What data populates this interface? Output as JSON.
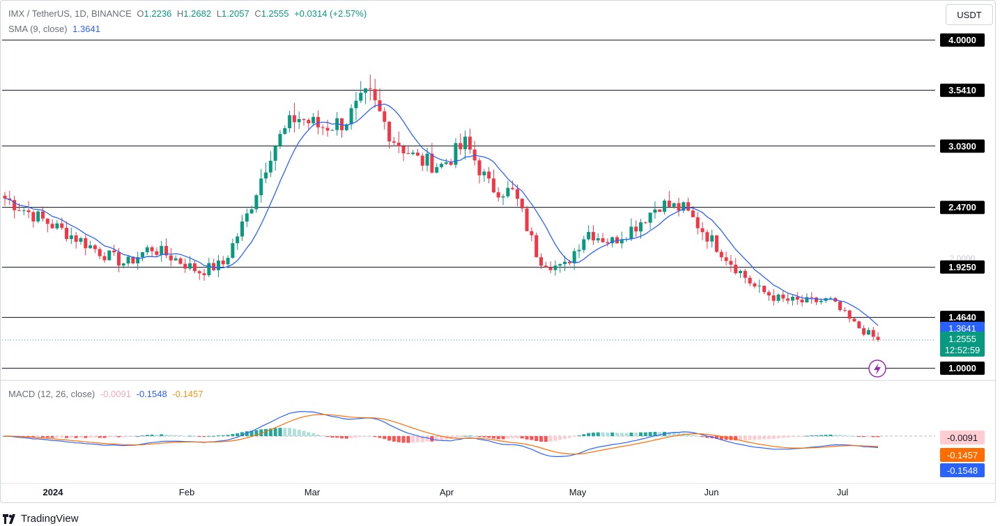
{
  "header": {
    "symbol": "IMX / TetherUS, 1D, BINANCE",
    "o_label": "O",
    "o_value": "1.2236",
    "h_label": "H",
    "h_value": "1.2682",
    "l_label": "L",
    "l_value": "1.2057",
    "c_label": "C",
    "c_value": "1.2555",
    "change": "+0.0314 (+2.57%)",
    "sma_label": "SMA (9, close)",
    "sma_value": "1.3641"
  },
  "currency_button": "USDT",
  "macd_legend": {
    "label": "MACD (12, 26, close)",
    "hist": "-0.0091",
    "macd": "-0.1548",
    "signal": "-0.1457"
  },
  "brand": "TradingView",
  "colors": {
    "up": "#089981",
    "down": "#f23645",
    "sma": "#2962ff",
    "macd": "#2962ff",
    "signal": "#ff6d00"
  },
  "chart_data": {
    "type": "candlestick",
    "title": "IMX / TetherUS, 1D, BINANCE",
    "x_labels": [
      "2024",
      "Feb",
      "Mar",
      "Apr",
      "May",
      "Jun",
      "Jul"
    ],
    "price_axis_labels": [
      "4.0000",
      "3.5410",
      "3.0300",
      "2.4700",
      "2.0000",
      "1.9250",
      "1.4640",
      "1.0000"
    ],
    "horizontal_levels": [
      4.0,
      3.541,
      3.03,
      2.47,
      1.925,
      1.464,
      1.0
    ],
    "level_labels": [
      "4.0000",
      "3.5410",
      "3.0300",
      "2.4700",
      "1.9250",
      "1.4640",
      "1.0000"
    ],
    "faint_tick": "2.0000",
    "last_price": {
      "value": 1.2555,
      "label": "1.2555",
      "countdown": "12:52:59"
    },
    "sma_value": {
      "value": 1.3641,
      "label": "1.3641"
    },
    "approx_close_path": [
      2.55,
      2.42,
      2.3,
      2.18,
      2.05,
      1.95,
      2.1,
      2.0,
      1.88,
      1.95,
      2.4,
      3.0,
      3.3,
      3.2,
      3.25,
      3.5,
      3.1,
      2.9,
      2.85,
      3.05,
      2.65,
      2.6,
      2.0,
      1.9,
      2.25,
      2.15,
      2.3,
      2.5,
      2.45,
      2.2,
      1.95,
      1.72,
      1.62,
      1.6,
      1.62,
      1.4,
      1.25
    ],
    "y_range": [
      0.85,
      4.05
    ],
    "macd": {
      "label": "MACD (12, 26, close)",
      "histogram_value": -0.0091,
      "macd_value": -0.1548,
      "signal_value": -0.1457,
      "axis_labels": [
        "-0.0091",
        "-0.1457",
        "-0.1548"
      ]
    }
  }
}
